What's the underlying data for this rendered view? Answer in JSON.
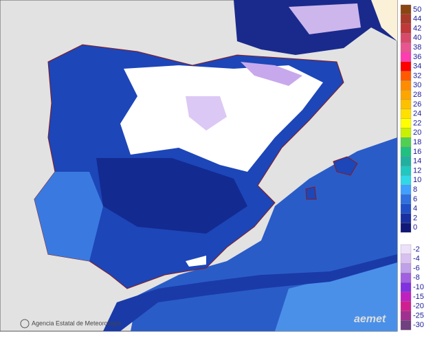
{
  "legend": {
    "entries": [
      {
        "label": 50,
        "color": "#8a4513"
      },
      {
        "label": 44,
        "color": "#a83a2a"
      },
      {
        "label": 42,
        "color": "#c03838"
      },
      {
        "label": 40,
        "color": "#d84a6a"
      },
      {
        "label": 38,
        "color": "#e85590"
      },
      {
        "label": 36,
        "color": "#ff3cb0"
      },
      {
        "label": 34,
        "color": "#ff0000"
      },
      {
        "label": 32,
        "color": "#ff5a00"
      },
      {
        "label": 30,
        "color": "#ff8c00"
      },
      {
        "label": 28,
        "color": "#ffa500"
      },
      {
        "label": 26,
        "color": "#ffc000"
      },
      {
        "label": 24,
        "color": "#ffe000"
      },
      {
        "label": 22,
        "color": "#ffff00"
      },
      {
        "label": 20,
        "color": "#c8f000"
      },
      {
        "label": 18,
        "color": "#50d050"
      },
      {
        "label": 16,
        "color": "#20c080"
      },
      {
        "label": 14,
        "color": "#20b0a0"
      },
      {
        "label": 12,
        "color": "#20c8c0"
      },
      {
        "label": 10,
        "color": "#30d8e8"
      },
      {
        "label": 8,
        "color": "#40a0ff"
      },
      {
        "label": 6,
        "color": "#3070e0"
      },
      {
        "label": 4,
        "color": "#2050c8"
      },
      {
        "label": 2,
        "color": "#1830a0"
      },
      {
        "label": 0,
        "color": "#101878"
      }
    ],
    "negative_entries": [
      {
        "label": -2,
        "color": "#ece0fa"
      },
      {
        "label": -4,
        "color": "#d8c0f0"
      },
      {
        "label": -6,
        "color": "#c0a0e8"
      },
      {
        "label": -8,
        "color": "#a060e0"
      },
      {
        "label": -10,
        "color": "#8030e0"
      },
      {
        "label": -15,
        "color": "#c020c0"
      },
      {
        "label": -20,
        "color": "#d02090"
      },
      {
        "label": -25,
        "color": "#a03090"
      },
      {
        "label": -30,
        "color": "#704080"
      }
    ]
  },
  "credit": "Agencia Estatal de Meteorología",
  "logo": "aemet"
}
